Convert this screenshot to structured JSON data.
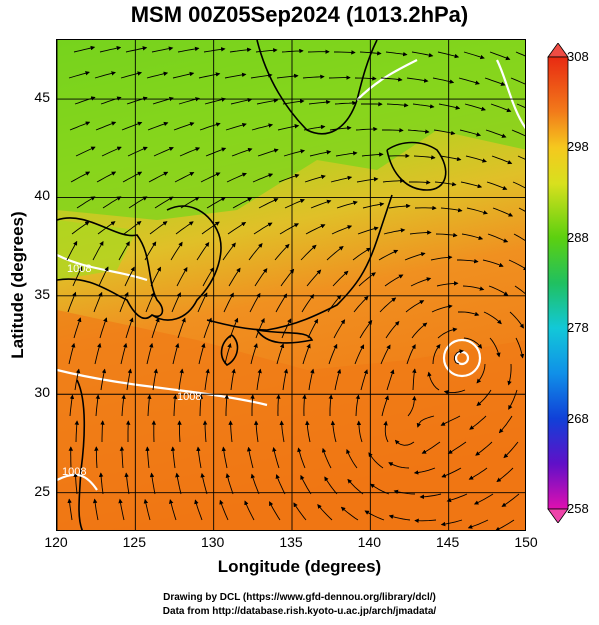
{
  "title": "MSM 00Z05Sep2024 (1013.2hPa)",
  "map": {
    "type": "heatmap",
    "x_label": "Longitude (degrees)",
    "y_label": "Latitude  (degrees)",
    "x_range": [
      120,
      150
    ],
    "y_range": [
      23,
      48
    ],
    "x_ticks": [
      "120",
      "125",
      "130",
      "135",
      "140",
      "145",
      "150"
    ],
    "y_ticks": [
      "25",
      "30",
      "35",
      "40",
      "45"
    ],
    "colorbar_ticks": [
      "308",
      "298",
      "288",
      "278",
      "268",
      "258"
    ],
    "colorbar_range": [
      258,
      308
    ],
    "contour_labels": [
      "1008",
      "1008",
      "1008"
    ],
    "colors": {
      "warm_sea": "#f07818",
      "mid_land": "#e8c020",
      "cool_north": "#8cd820",
      "land_outline": "#000000",
      "contour": "#ffffff"
    }
  },
  "footer": {
    "line1": "Drawing by DCL (https://www.gfd-dennou.org/library/dcl/)",
    "line2": "Data from http://database.rish.kyoto-u.ac.jp/arch/jmadata/"
  }
}
